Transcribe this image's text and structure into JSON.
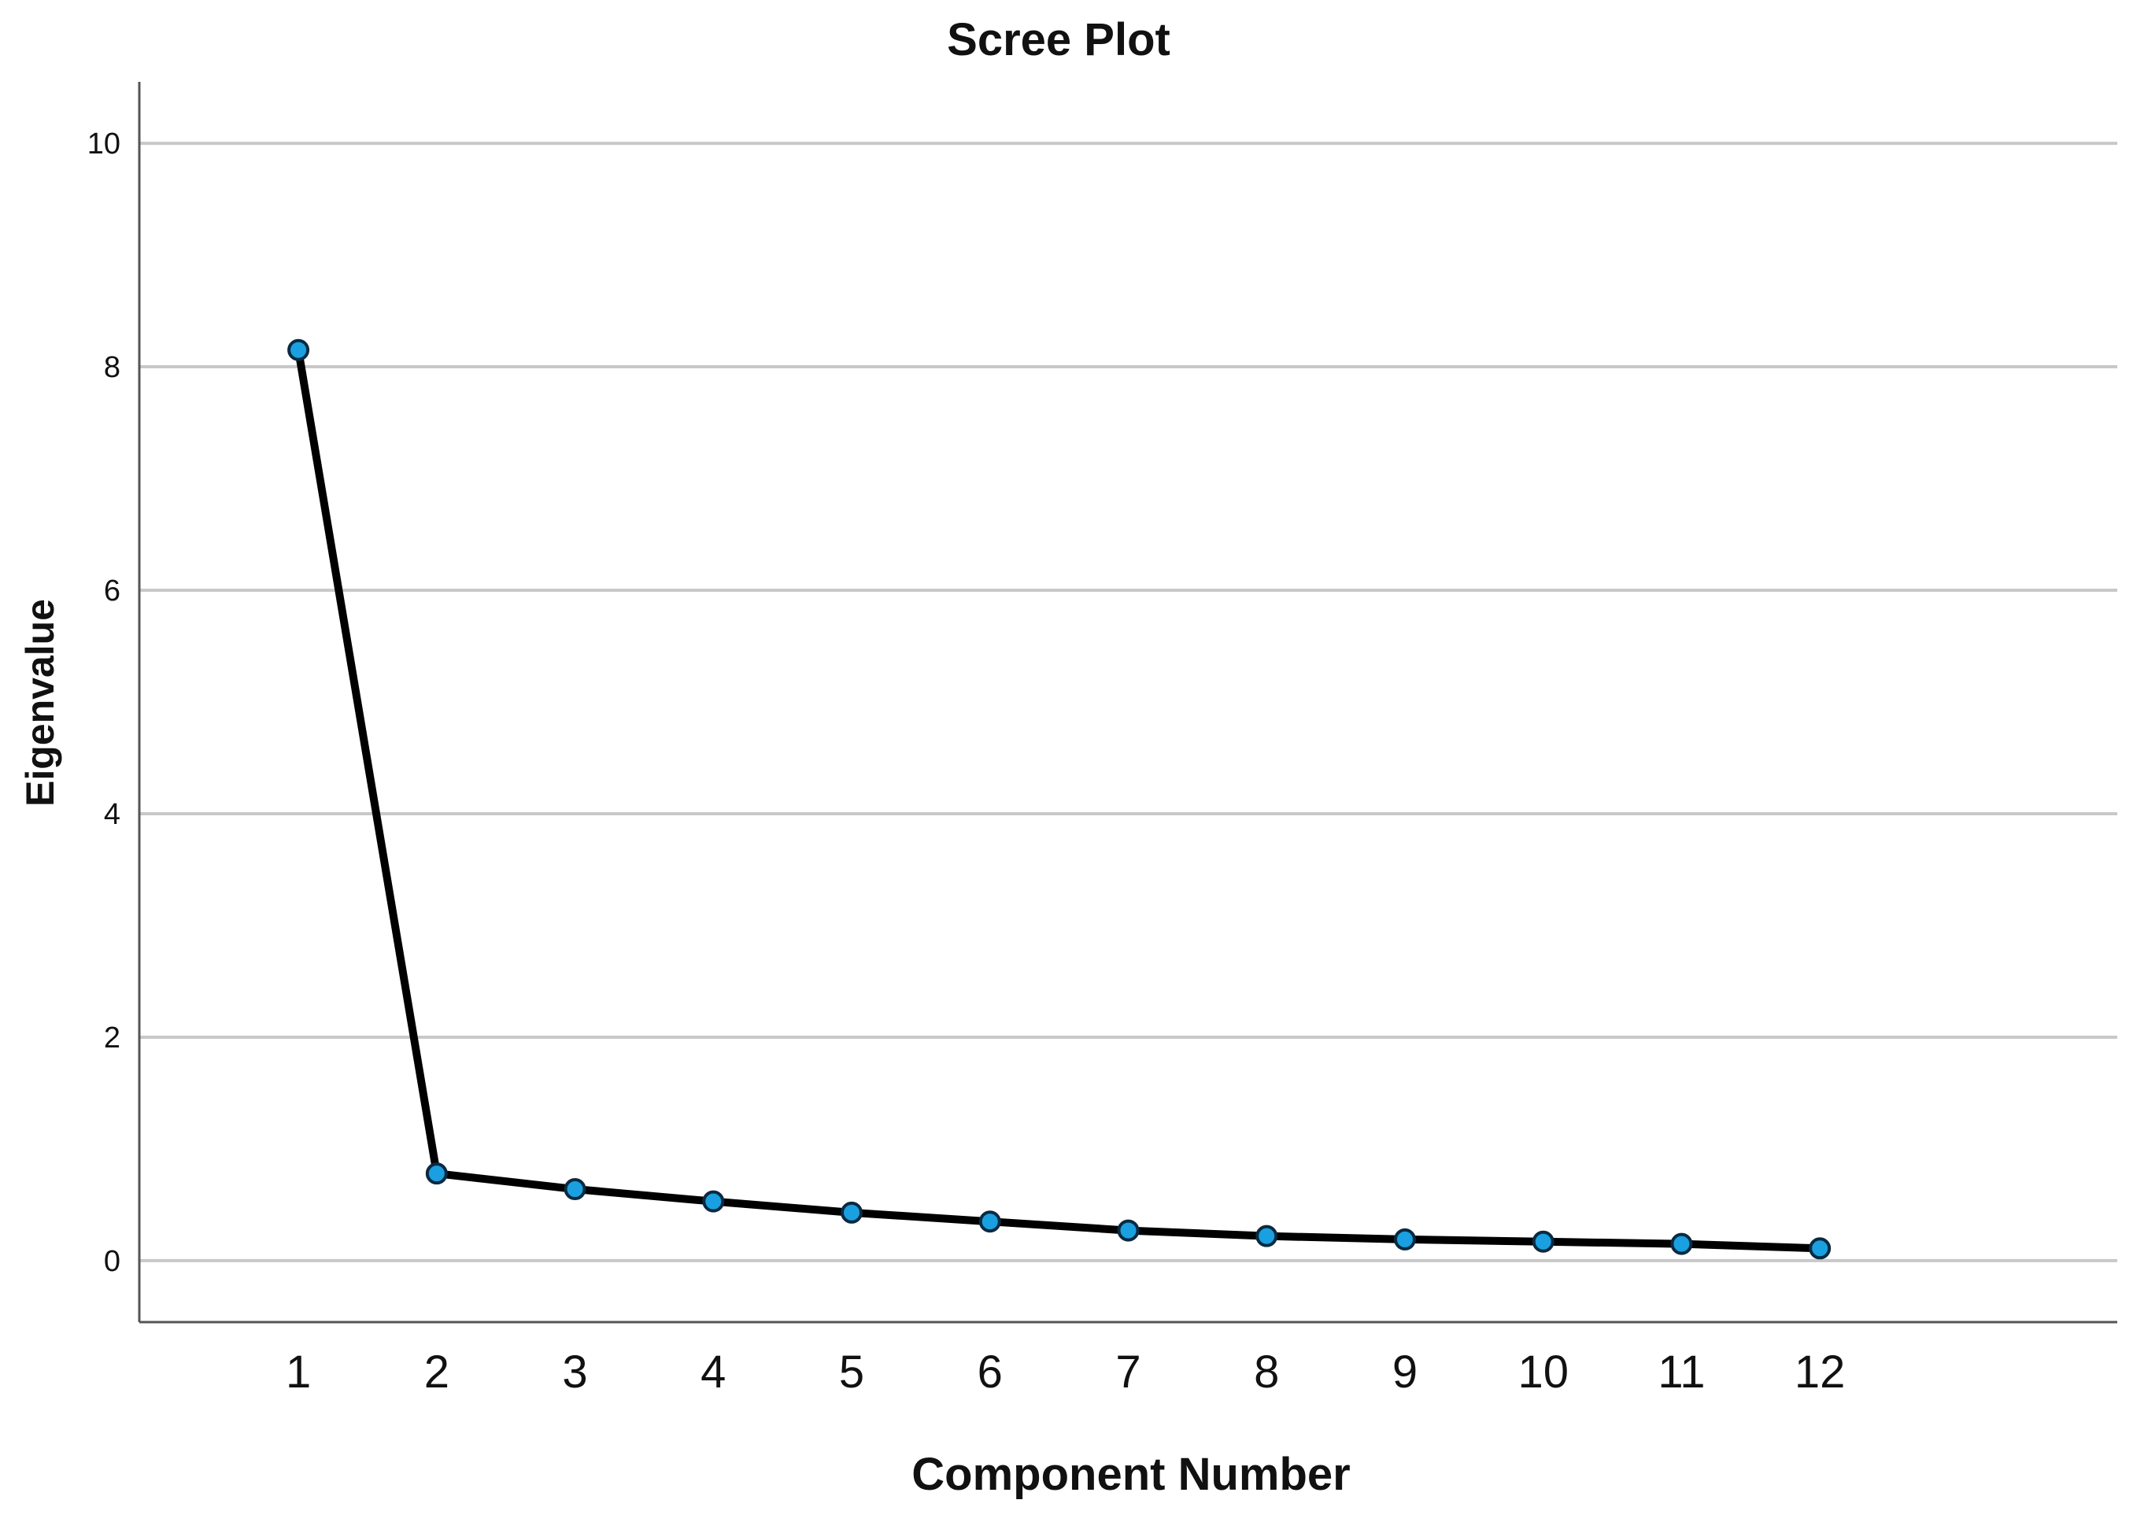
{
  "chart_data": {
    "type": "line",
    "title": "Scree Plot",
    "xlabel": "Component Number",
    "ylabel": "Eigenvalue",
    "x": [
      1,
      2,
      3,
      4,
      5,
      6,
      7,
      8,
      9,
      10,
      11,
      12
    ],
    "values": [
      8.15,
      0.78,
      0.64,
      0.53,
      0.43,
      0.35,
      0.27,
      0.22,
      0.19,
      0.17,
      0.15,
      0.11
    ],
    "xlim": [
      -0.15,
      14.15
    ],
    "ylim": [
      -0.55,
      10.55
    ],
    "yticks": [
      0,
      2,
      4,
      6,
      8,
      10
    ],
    "grid": "horizontal",
    "legend": "none",
    "colors": {
      "line": "#000000",
      "marker": "#1aa0e0",
      "marker_edge": "#0a2a40",
      "grid": "#c8c8c8",
      "axis": "#555555"
    }
  }
}
